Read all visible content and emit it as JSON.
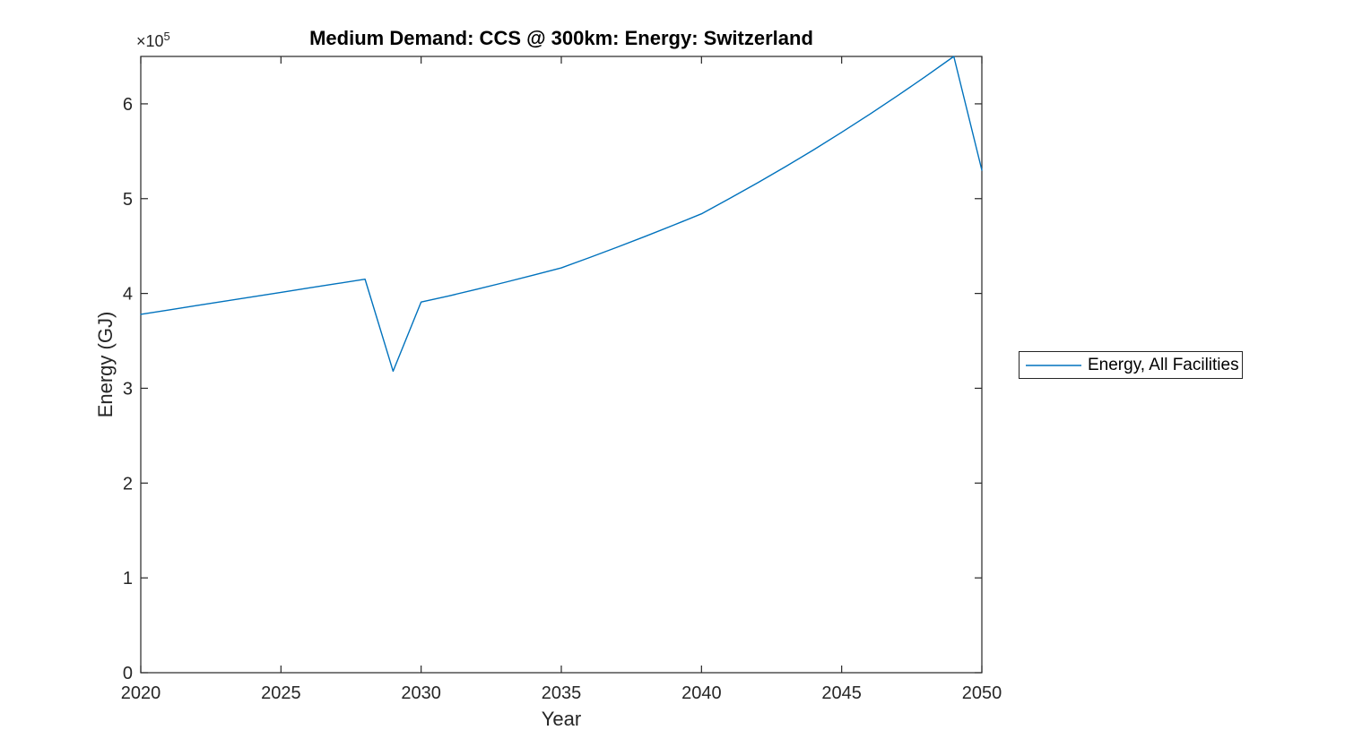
{
  "figure": {
    "background": "#ffffff"
  },
  "chart_data": {
    "type": "line",
    "title": "Medium Demand: CCS @ 300km: Energy: Switzerland",
    "xlabel": "Year",
    "ylabel": "Energy (GJ)",
    "y_exponent": {
      "base": "×10",
      "exp": "5"
    },
    "xlim": [
      2020,
      2050
    ],
    "ylim": [
      0,
      650000
    ],
    "x_ticks": [
      2020,
      2025,
      2030,
      2035,
      2040,
      2045,
      2050
    ],
    "x_tick_labels": [
      "2020",
      "2025",
      "2030",
      "2035",
      "2040",
      "2045",
      "2050"
    ],
    "y_ticks": [
      0,
      100000,
      200000,
      300000,
      400000,
      500000,
      600000
    ],
    "y_tick_labels": [
      "0",
      "1",
      "2",
      "3",
      "4",
      "5",
      "6"
    ],
    "grid": false,
    "box": true,
    "axis_color": "#262626",
    "tick_label_color": "#262626",
    "x": [
      2020,
      2021,
      2022,
      2023,
      2024,
      2025,
      2026,
      2027,
      2028,
      2029,
      2030,
      2031,
      2032,
      2033,
      2034,
      2035,
      2036,
      2037,
      2038,
      2039,
      2040,
      2041,
      2042,
      2043,
      2044,
      2045,
      2046,
      2047,
      2048,
      2049,
      2050
    ],
    "series": [
      {
        "name": "Energy, All Facilities",
        "color": "#0072BD",
        "values": [
          378000,
          382600,
          387300,
          391900,
          396500,
          401100,
          405800,
          410400,
          415000,
          318000,
          391000,
          397500,
          404500,
          411800,
          419300,
          427000,
          437800,
          448900,
          460300,
          472000,
          484000,
          500100,
          516700,
          533800,
          551500,
          570000,
          589000,
          608700,
          629000,
          650000,
          530000
        ]
      }
    ],
    "legend": {
      "position": "outside-right",
      "entries": [
        {
          "label": "Energy, All Facilities",
          "color": "#0072BD"
        }
      ]
    }
  }
}
